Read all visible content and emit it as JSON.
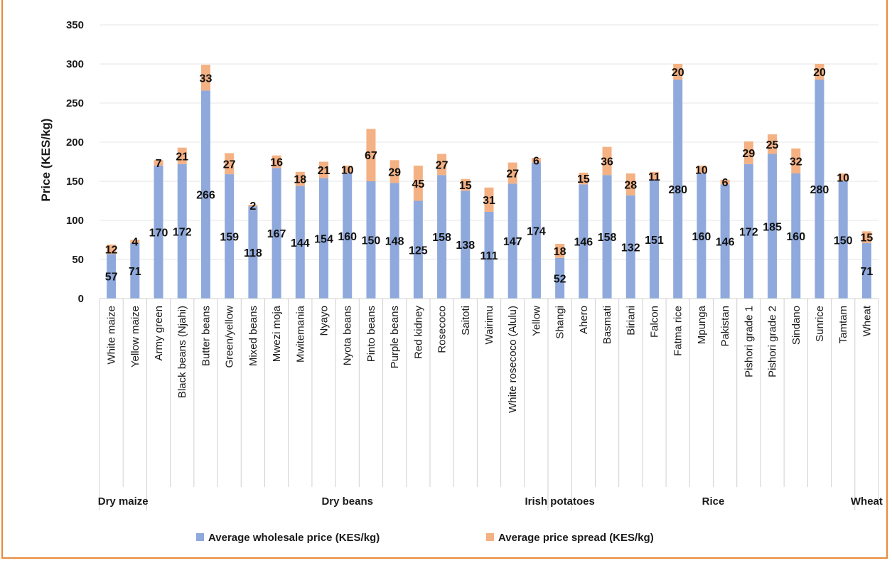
{
  "chart_data": {
    "type": "bar",
    "stacked": true,
    "ylabel": "Price (KES/kg)",
    "ylim": [
      0,
      350
    ],
    "yticks": [
      0,
      50,
      100,
      150,
      200,
      250,
      300,
      350
    ],
    "grid": true,
    "legend_position": "bottom",
    "colors": {
      "wholesale": "#8fa9dc",
      "spread": "#f4b183",
      "axis": "#d0d0d0",
      "frame": "#e8893a"
    },
    "groups": [
      {
        "name": "Dry maize",
        "categories": [
          "White maize",
          "Yellow maize"
        ]
      },
      {
        "name": "Dry beans",
        "categories": [
          "Army green",
          "Black beans (Njahi)",
          "Butter beans",
          "Green/yellow",
          "Mixed beans",
          "Mwezi moja",
          "Mwitemania",
          "Nyayo",
          "Nyota beans",
          "Pinto beans",
          "Purple beans",
          "Red kidney",
          "Rosecoco",
          "Saitoti",
          "Wairimu",
          "White rosecoco (Alulu)",
          "Yellow"
        ]
      },
      {
        "name": "Irish potatoes",
        "categories": [
          "Shangi"
        ]
      },
      {
        "name": "Rice",
        "categories": [
          "Ahero",
          "Basmati",
          "Biriani",
          "Falcon",
          "Fatma rice",
          "Mpunga",
          "Pakistan",
          "Pishori grade 1",
          "Pishori grade 2",
          "Sindano",
          "Sunrice",
          "Tamtam"
        ]
      },
      {
        "name": "Wheat",
        "categories": [
          "Wheat"
        ]
      }
    ],
    "series": [
      {
        "name": "Average wholesale price (KES/kg)",
        "values": [
          57,
          71,
          170,
          172,
          266,
          159,
          118,
          167,
          144,
          154,
          160,
          150,
          148,
          125,
          158,
          138,
          111,
          147,
          174,
          52,
          146,
          158,
          132,
          151,
          280,
          160,
          146,
          172,
          185,
          160,
          280,
          150,
          71
        ]
      },
      {
        "name": "Average price spread (KES/kg)",
        "values": [
          12,
          4,
          7,
          21,
          33,
          27,
          2,
          16,
          18,
          21,
          10,
          67,
          29,
          45,
          27,
          15,
          31,
          27,
          6,
          18,
          15,
          36,
          28,
          11,
          20,
          10,
          6,
          29,
          25,
          32,
          20,
          10,
          15
        ]
      }
    ]
  }
}
